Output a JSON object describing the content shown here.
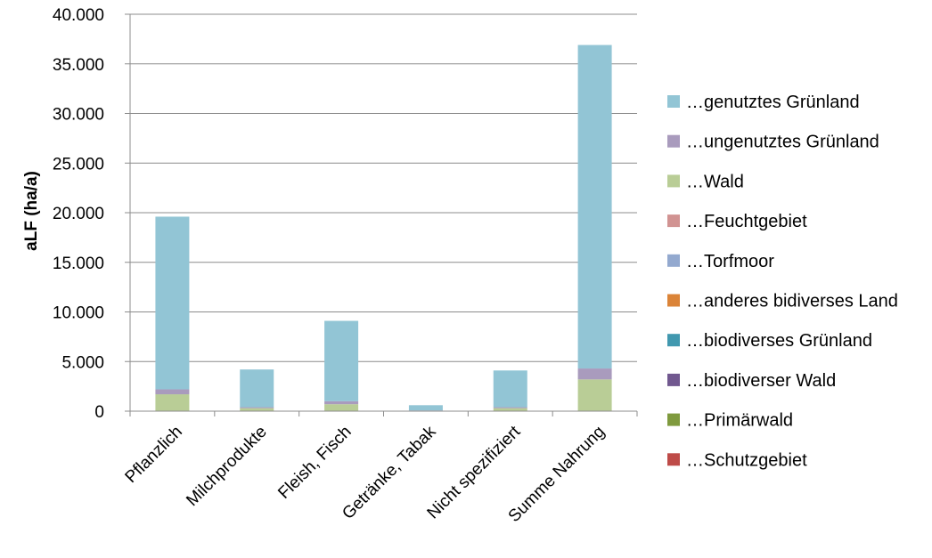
{
  "chart_data": {
    "type": "bar",
    "stacked": true,
    "title": "",
    "xlabel": "",
    "ylabel": "aLF (ha/a)",
    "ylim": [
      0,
      40000
    ],
    "yticks": [
      0,
      5000,
      10000,
      15000,
      20000,
      25000,
      30000,
      35000,
      40000
    ],
    "ytick_labels": [
      "0",
      "5.000",
      "10.000",
      "15.000",
      "20.000",
      "25.000",
      "30.000",
      "35.000",
      "40.000"
    ],
    "grid": true,
    "legend_position": "right",
    "categories": [
      "Pflanzlich",
      "Milchprodukte",
      "Fleish, Fisch",
      "Getränke, Tabak",
      "Nicht spezifiziert",
      "Summe Nahrung"
    ],
    "series": [
      {
        "name": "…Schutzgebiet",
        "color": "#be4b48",
        "values": [
          0,
          0,
          0,
          0,
          0,
          0
        ]
      },
      {
        "name": "…Primärwald",
        "color": "#7f9a3e",
        "values": [
          0,
          0,
          0,
          0,
          0,
          0
        ]
      },
      {
        "name": "…biodiverser Wald",
        "color": "#71588f",
        "values": [
          0,
          0,
          0,
          0,
          0,
          0
        ]
      },
      {
        "name": "…biodiverses Grünland",
        "color": "#4198af",
        "values": [
          0,
          0,
          0,
          0,
          0,
          0
        ]
      },
      {
        "name": "…anderes bidiverses Land",
        "color": "#db8438",
        "values": [
          0,
          0,
          0,
          0,
          0,
          0
        ]
      },
      {
        "name": "…Torfmoor",
        "color": "#93a9cf",
        "values": [
          0,
          0,
          0,
          0,
          0,
          0
        ]
      },
      {
        "name": "…Feuchtgebiet",
        "color": "#d19392",
        "values": [
          0,
          0,
          0,
          0,
          0,
          0
        ]
      },
      {
        "name": "…Wald",
        "color": "#b9cd96",
        "values": [
          1700,
          300,
          700,
          50,
          300,
          3200
        ]
      },
      {
        "name": "…ungenutztes Grünland",
        "color": "#a99bbd",
        "values": [
          500,
          100,
          300,
          20,
          100,
          1100
        ]
      },
      {
        "name": "…genutztes Grünland",
        "color": "#92c5d5",
        "values": [
          17400,
          3800,
          8100,
          530,
          3700,
          32600
        ]
      }
    ]
  }
}
